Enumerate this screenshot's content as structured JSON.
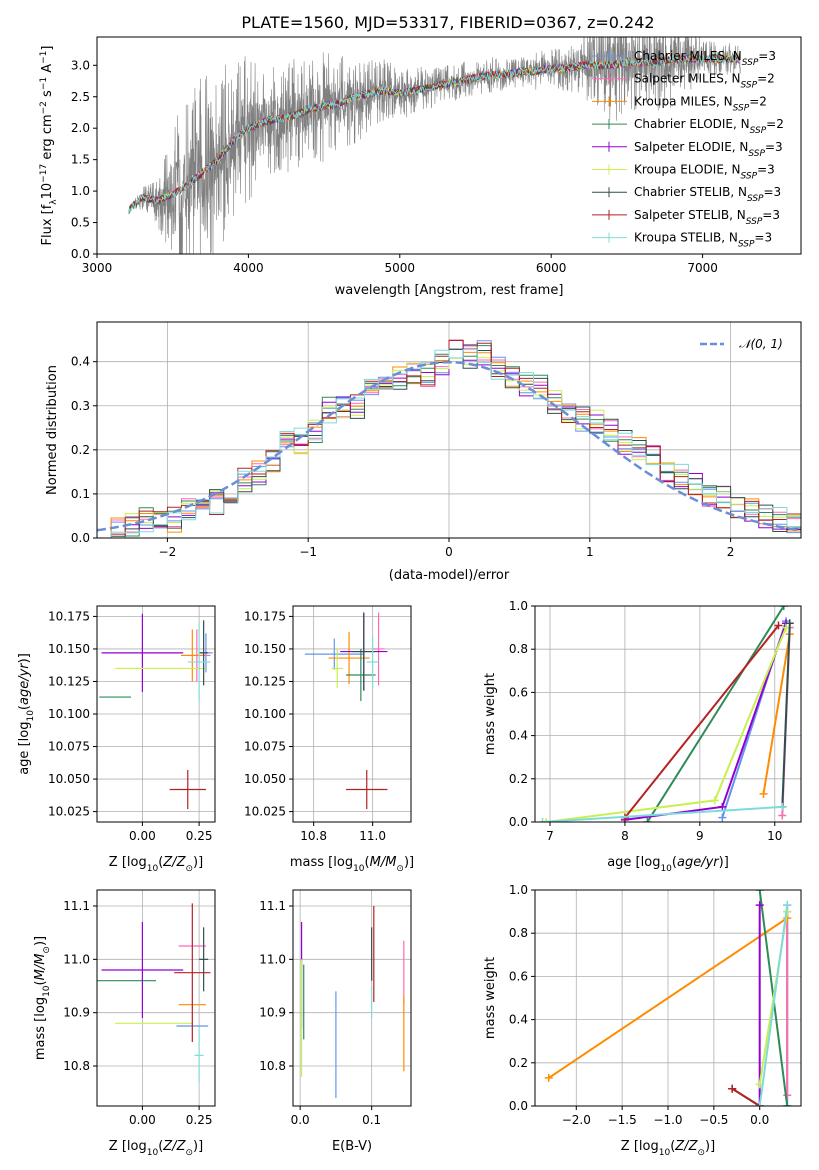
{
  "figure": {
    "title": "PLATE=1560, MJD=53317, FIBERID=0367, z=0.242"
  },
  "chart_data": [
    {
      "id": "spectrum",
      "type": "line",
      "xlabel": "wavelength [Angstrom, rest frame]",
      "ylabel": "Flux [f_λ10^-17 erg cm^-2 s^-1 A^-1]",
      "xlim": [
        3000,
        7650
      ],
      "ylim": [
        0,
        3.45
      ],
      "xticks": [
        3000,
        4000,
        5000,
        6000,
        7000
      ],
      "yticks": [
        0.0,
        0.5,
        1.0,
        1.5,
        2.0,
        2.5,
        3.0
      ],
      "data_range": [
        3210,
        7250
      ],
      "observed": {
        "color": "#808080",
        "x": [
          3210,
          3300,
          3400,
          3500,
          3600,
          3700,
          3800,
          3900,
          4000,
          4100,
          4200,
          4300,
          4400,
          4500,
          4600,
          4700,
          4800,
          4900,
          5000,
          5100,
          5200,
          5300,
          5400,
          5500,
          5600,
          5700,
          5800,
          5900,
          6000,
          6100,
          6200,
          6300,
          6400,
          6500,
          6600,
          6700,
          6800,
          6900,
          7000,
          7100,
          7200,
          7250
        ],
        "y": [
          0.7,
          0.9,
          0.85,
          0.95,
          1.1,
          1.3,
          1.5,
          1.8,
          2.0,
          2.1,
          2.15,
          2.2,
          2.3,
          2.35,
          2.4,
          2.5,
          2.55,
          2.6,
          2.55,
          2.6,
          2.65,
          2.7,
          2.75,
          2.8,
          2.85,
          2.85,
          2.9,
          2.9,
          2.95,
          2.95,
          3.0,
          3.0,
          3.0,
          3.05,
          3.05,
          3.05,
          3.1,
          3.1,
          3.1,
          3.1,
          3.1,
          3.1
        ],
        "noise": [
          0,
          0.2,
          0.4,
          1.2,
          1.4,
          1.6,
          1.5,
          1.3,
          1.2,
          1.0,
          0.9,
          0.9,
          0.8,
          0.9,
          0.8,
          0.8,
          0.6,
          0.5,
          0.4,
          0.4,
          0.35,
          0.3,
          0.3,
          0.3,
          0.3,
          0.25,
          0.25,
          0.3,
          0.35,
          0.35,
          0.5,
          0.7,
          0.9,
          0.9,
          0.7,
          0.8,
          0.9,
          0.6,
          0.3,
          0.3,
          0.25,
          0.25
        ]
      },
      "series": [
        {
          "name": "Chabrier MILES, N_SSP=3",
          "color": "#6495ed"
        },
        {
          "name": "Salpeter MILES, N_SSP=2",
          "color": "#ff69b4"
        },
        {
          "name": "Kroupa MILES, N_SSP=2",
          "color": "#ff8c00"
        },
        {
          "name": "Chabrier ELODIE, N_SSP=2",
          "color": "#2e8b57"
        },
        {
          "name": "Salpeter ELODIE, N_SSP=3",
          "color": "#9400d3"
        },
        {
          "name": "Kroupa ELODIE, N_SSP=3",
          "color": "#c8f050"
        },
        {
          "name": "Chabrier STELIB, N_SSP=3",
          "color": "#2f4f4f"
        },
        {
          "name": "Salpeter STELIB, N_SSP=3",
          "color": "#b22222"
        },
        {
          "name": "Kroupa STELIB, N_SSP=3",
          "color": "#7fdbdb"
        }
      ],
      "legend_position": "upper-right"
    },
    {
      "id": "residuals",
      "type": "line",
      "xlabel": "(data-model)/error",
      "ylabel": "Normed distribution",
      "xlim": [
        -2.5,
        2.5
      ],
      "ylim": [
        0,
        0.49
      ],
      "xticks": [
        -2,
        -1,
        0,
        1,
        2
      ],
      "yticks": [
        0.0,
        0.1,
        0.2,
        0.3,
        0.4
      ],
      "grid": true,
      "legend": "𝒩(0, 1)",
      "legend_position": "upper-right",
      "reference": {
        "name": "N(0,1)",
        "color": "#6a8fd8",
        "style": "dashed"
      },
      "bin_centers": [
        -2.45,
        -2.35,
        -2.25,
        -2.15,
        -2.05,
        -1.95,
        -1.85,
        -1.75,
        -1.65,
        -1.55,
        -1.45,
        -1.35,
        -1.25,
        -1.15,
        -1.05,
        -0.95,
        -0.85,
        -0.75,
        -0.65,
        -0.55,
        -0.45,
        -0.35,
        -0.25,
        -0.15,
        -0.05,
        0.05,
        0.15,
        0.25,
        0.35,
        0.45,
        0.55,
        0.65,
        0.75,
        0.85,
        0.95,
        1.05,
        1.15,
        1.25,
        1.35,
        1.45,
        1.55,
        1.65,
        1.75,
        1.85,
        1.95,
        2.05,
        2.15,
        2.25,
        2.35,
        2.45
      ],
      "hist_values": [
        0.01,
        0.02,
        0.03,
        0.04,
        0.03,
        0.04,
        0.06,
        0.07,
        0.08,
        0.1,
        0.13,
        0.15,
        0.18,
        0.22,
        0.22,
        0.24,
        0.29,
        0.3,
        0.3,
        0.33,
        0.35,
        0.36,
        0.38,
        0.37,
        0.4,
        0.43,
        0.41,
        0.42,
        0.38,
        0.37,
        0.35,
        0.34,
        0.31,
        0.29,
        0.27,
        0.26,
        0.24,
        0.22,
        0.2,
        0.18,
        0.15,
        0.14,
        0.12,
        0.1,
        0.09,
        0.07,
        0.06,
        0.05,
        0.04,
        0.03
      ]
    },
    {
      "id": "age-vs-z",
      "type": "scatter",
      "xlabel": "Z [log10(Z/Z⊙)]",
      "ylabel": "age [log10(age/yr)]",
      "xlim": [
        -0.2,
        0.32
      ],
      "ylim": [
        10.017,
        10.183
      ],
      "xticks": [
        0.0,
        0.25
      ],
      "xticklabels": [
        "0.00",
        "0.25"
      ],
      "yticks": [
        10.025,
        10.05,
        10.075,
        10.1,
        10.125,
        10.15,
        10.175
      ],
      "grid": true,
      "points": [
        {
          "series": 0,
          "x": 0.28,
          "y": 10.147,
          "xerr": 0.03,
          "yerr": 0.015
        },
        {
          "series": 1,
          "x": 0.24,
          "y": 10.145,
          "xerr": 0.06,
          "yerr": 0.02
        },
        {
          "series": 2,
          "x": 0.22,
          "y": 10.145,
          "xerr": 0.05,
          "yerr": 0.02
        },
        {
          "series": 3,
          "x": -0.12,
          "y": 10.113,
          "xerr": 0.07,
          "yerr": 0.0
        },
        {
          "series": 4,
          "x": 0.0,
          "y": 10.147,
          "xerr": 0.18,
          "yerr": 0.03
        },
        {
          "series": 5,
          "x": 0.08,
          "y": 10.135,
          "xerr": 0.2,
          "yerr": 0.0
        },
        {
          "series": 6,
          "x": 0.27,
          "y": 10.147,
          "xerr": 0.02,
          "yerr": 0.025
        },
        {
          "series": 7,
          "x": 0.2,
          "y": 10.042,
          "xerr": 0.08,
          "yerr": 0.015
        },
        {
          "series": 8,
          "x": 0.25,
          "y": 10.14,
          "xerr": 0.05,
          "yerr": 0.03
        }
      ]
    },
    {
      "id": "age-vs-mass",
      "type": "scatter",
      "xlabel": "mass [log10(M/M⊙)]",
      "ylabel": "",
      "xlim": [
        10.73,
        11.13
      ],
      "ylim": [
        10.017,
        10.183
      ],
      "xticks": [
        10.8,
        11.0
      ],
      "xticklabels": [
        "10.8",
        "11.0"
      ],
      "yticks": [
        10.025,
        10.05,
        10.075,
        10.1,
        10.125,
        10.15,
        10.175
      ],
      "grid": true,
      "points": [
        {
          "series": 0,
          "x": 10.87,
          "y": 10.146,
          "xerr": 0.1,
          "yerr": 0.012
        },
        {
          "series": 1,
          "x": 11.02,
          "y": 10.15,
          "xerr": 0.02,
          "yerr": 0.028
        },
        {
          "series": 2,
          "x": 10.92,
          "y": 10.143,
          "xerr": 0.07,
          "yerr": 0.02
        },
        {
          "series": 3,
          "x": 10.96,
          "y": 10.13,
          "xerr": 0.05,
          "yerr": 0.02
        },
        {
          "series": 4,
          "x": 10.97,
          "y": 10.148,
          "xerr": 0.08,
          "yerr": 0.03
        },
        {
          "series": 5,
          "x": 10.88,
          "y": 10.135,
          "xerr": 0.02,
          "yerr": 0.015
        },
        {
          "series": 6,
          "x": 10.97,
          "y": 10.148,
          "xerr": 0.04,
          "yerr": 0.03
        },
        {
          "series": 7,
          "x": 10.98,
          "y": 10.042,
          "xerr": 0.07,
          "yerr": 0.015
        },
        {
          "series": 8,
          "x": 11.0,
          "y": 10.14,
          "xerr": 0.02,
          "yerr": 0.02
        }
      ]
    },
    {
      "id": "weight-vs-age",
      "type": "line",
      "xlabel": "age [log10(age/yr)]",
      "ylabel": "mass weight",
      "xlim": [
        6.8,
        10.35
      ],
      "ylim": [
        0,
        1.0
      ],
      "xticks": [
        7,
        8,
        9,
        10
      ],
      "yticks": [
        0.0,
        0.2,
        0.4,
        0.6,
        0.8,
        1.0
      ],
      "grid": true,
      "series_points": [
        {
          "series": 0,
          "x": [
            9.3,
            10.15
          ],
          "y": [
            0.02,
            0.93
          ]
        },
        {
          "series": 1,
          "x": [
            10.1,
            10.2
          ],
          "y": [
            0.03,
            0.9
          ]
        },
        {
          "series": 2,
          "x": [
            9.85,
            10.2
          ],
          "y": [
            0.13,
            0.87
          ]
        },
        {
          "series": 3,
          "x": [
            8.3,
            10.12
          ],
          "y": [
            0.0,
            1.0
          ]
        },
        {
          "series": 4,
          "x": [
            8.0,
            9.3,
            10.15
          ],
          "y": [
            0.01,
            0.07,
            0.92
          ]
        },
        {
          "series": 5,
          "x": [
            6.95,
            9.2,
            10.15
          ],
          "y": [
            0.0,
            0.1,
            0.9
          ]
        },
        {
          "series": 6,
          "x": [
            10.1,
            10.2
          ],
          "y": [
            0.07,
            0.92
          ]
        },
        {
          "series": 7,
          "x": [
            8.0,
            10.05
          ],
          "y": [
            0.02,
            0.91
          ]
        },
        {
          "series": 8,
          "x": [
            6.9,
            10.1
          ],
          "y": [
            0.0,
            0.07
          ]
        }
      ]
    },
    {
      "id": "mass-vs-z",
      "type": "scatter",
      "xlabel": "Z [log10(Z/Z⊙)]",
      "ylabel": "mass [log10(M/M⊙)]",
      "xlim": [
        -0.2,
        0.32
      ],
      "ylim": [
        10.725,
        11.13
      ],
      "xticks": [
        0.0,
        0.25
      ],
      "xticklabels": [
        "0.00",
        "0.25"
      ],
      "yticks": [
        10.8,
        10.9,
        11.0,
        11.1
      ],
      "yticklabels": [
        "10.8",
        "10.9",
        "11.0",
        "11.1"
      ],
      "grid": true,
      "points": [
        {
          "series": 0,
          "x": 0.22,
          "y": 10.875,
          "xerr": 0.07,
          "yerr": 0.0
        },
        {
          "series": 1,
          "x": 0.22,
          "y": 11.025,
          "xerr": 0.06,
          "yerr": 0.0
        },
        {
          "series": 2,
          "x": 0.22,
          "y": 10.915,
          "xerr": 0.06,
          "yerr": 0.0
        },
        {
          "series": 3,
          "x": -0.07,
          "y": 10.96,
          "xerr": 0.13,
          "yerr": 0.0
        },
        {
          "series": 4,
          "x": 0.0,
          "y": 10.98,
          "xerr": 0.18,
          "yerr": 0.09
        },
        {
          "series": 5,
          "x": 0.05,
          "y": 10.88,
          "xerr": 0.17,
          "yerr": 0.0
        },
        {
          "series": 6,
          "x": 0.27,
          "y": 11.0,
          "xerr": 0.02,
          "yerr": 0.06
        },
        {
          "series": 7,
          "x": 0.22,
          "y": 10.975,
          "xerr": 0.08,
          "yerr": 0.13
        },
        {
          "series": 8,
          "x": 0.25,
          "y": 10.82,
          "xerr": 0.02,
          "yerr": 0.05
        }
      ]
    },
    {
      "id": "mass-vs-ebv",
      "type": "scatter",
      "xlabel": "E(B-V)",
      "ylabel": "",
      "xlim": [
        -0.01,
        0.155
      ],
      "ylim": [
        10.725,
        11.13
      ],
      "xticks": [
        0.0,
        0.1
      ],
      "xticklabels": [
        "0.0",
        "0.1"
      ],
      "yticks": [
        10.8,
        10.9,
        11.0,
        11.1
      ],
      "yticklabels": [
        "10.8",
        "10.9",
        "11.0",
        "11.1"
      ],
      "grid": true,
      "points": [
        {
          "series": 0,
          "x": 0.05,
          "y": 10.84,
          "xerr": 0.0,
          "yerr": 0.1
        },
        {
          "series": 1,
          "x": 0.145,
          "y": 10.975,
          "xerr": 0.0,
          "yerr": 0.06
        },
        {
          "series": 2,
          "x": 0.145,
          "y": 10.86,
          "xerr": 0.0,
          "yerr": 0.07
        },
        {
          "series": 3,
          "x": 0.005,
          "y": 10.92,
          "xerr": 0.0,
          "yerr": 0.07
        },
        {
          "series": 4,
          "x": 0.002,
          "y": 10.97,
          "xerr": 0.0,
          "yerr": 0.1
        },
        {
          "series": 5,
          "x": 0.002,
          "y": 10.89,
          "xerr": 0.0,
          "yerr": 0.11
        },
        {
          "series": 6,
          "x": 0.1,
          "y": 11.01,
          "xerr": 0.0,
          "yerr": 0.05
        },
        {
          "series": 7,
          "x": 0.103,
          "y": 11.01,
          "xerr": 0.0,
          "yerr": 0.09
        },
        {
          "series": 8,
          "x": 0.1,
          "y": 10.92,
          "xerr": 0.0,
          "yerr": 0.03
        }
      ]
    },
    {
      "id": "weight-vs-z",
      "type": "line",
      "xlabel": "Z [log10(Z/Z⊙)]",
      "ylabel": "mass weight",
      "xlim": [
        -2.45,
        0.45
      ],
      "ylim": [
        0,
        1.0
      ],
      "xticks": [
        -2.0,
        -1.5,
        -1.0,
        -0.5,
        0.0
      ],
      "xticklabels": [
        "−2.0",
        "−1.5",
        "−1.0",
        "−0.5",
        "0.0"
      ],
      "yticks": [
        0.0,
        0.2,
        0.4,
        0.6,
        0.8,
        1.0
      ],
      "grid": true,
      "series_points": [
        {
          "series": 0,
          "x": [
            0.3,
            0.3
          ],
          "y": [
            0.0,
            0.93
          ]
        },
        {
          "series": 1,
          "x": [
            0.3,
            0.3
          ],
          "y": [
            0.05,
            0.9
          ]
        },
        {
          "series": 2,
          "x": [
            -2.3,
            0.3
          ],
          "y": [
            0.13,
            0.87
          ]
        },
        {
          "series": 3,
          "x": [
            0.0,
            0.3
          ],
          "y": [
            1.0,
            0.0
          ]
        },
        {
          "series": 4,
          "x": [
            0.0,
            0.0
          ],
          "y": [
            0.0,
            0.93
          ]
        },
        {
          "series": 5,
          "x": [
            0.0,
            0.3
          ],
          "y": [
            0.1,
            0.9
          ]
        },
        {
          "series": 6,
          "x": [
            -0.3,
            0.0
          ],
          "y": [
            0.08,
            0.0
          ]
        },
        {
          "series": 7,
          "x": [
            -0.3,
            0.0
          ],
          "y": [
            0.08,
            0.0
          ]
        },
        {
          "series": 8,
          "x": [
            0.0,
            0.3
          ],
          "y": [
            0.0,
            0.93
          ]
        }
      ]
    }
  ]
}
